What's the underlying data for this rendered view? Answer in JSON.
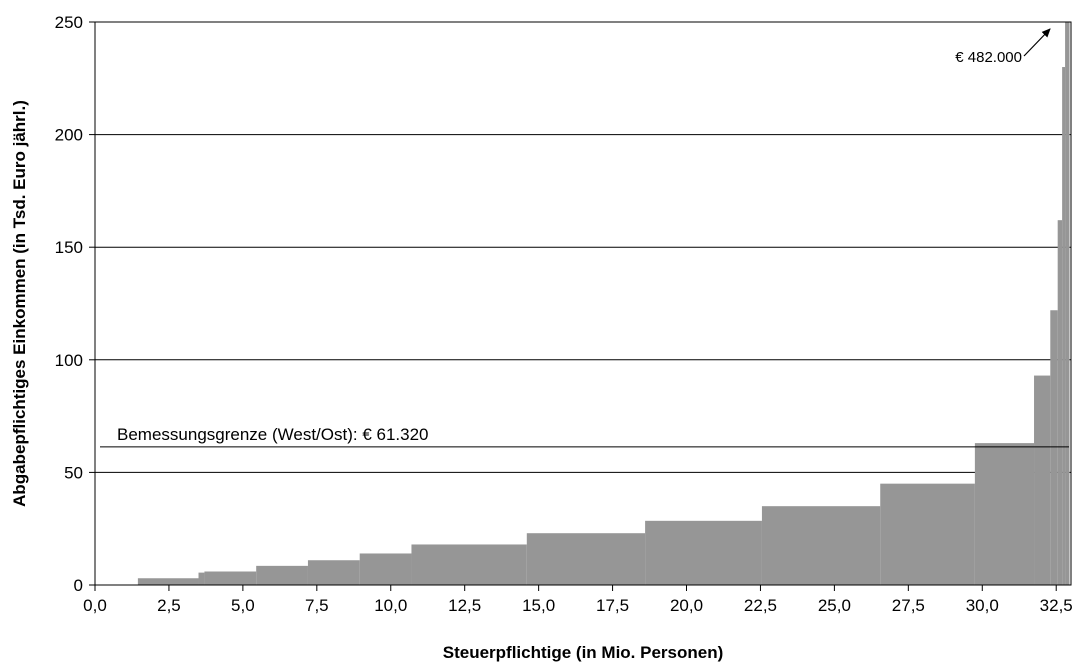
{
  "chart_data": {
    "type": "bar",
    "title": "",
    "xlabel": "Steuerpflichtige (in Mio. Personen)",
    "ylabel": "Abgabepflichtiges Einkommen (in Tsd. Euro jährl.)",
    "xlim": [
      0,
      33.0
    ],
    "ylim": [
      0,
      250
    ],
    "x_ticks": [
      "0,0",
      "2,5",
      "5,0",
      "7,5",
      "10,0",
      "12,5",
      "15,0",
      "17,5",
      "20,0",
      "22,5",
      "25,0",
      "27,5",
      "30,0",
      "32,5"
    ],
    "x_tick_values": [
      0,
      2.5,
      5,
      7.5,
      10,
      12.5,
      15,
      17.5,
      20,
      22.5,
      25,
      27.5,
      30,
      32.5
    ],
    "y_ticks": [
      "0",
      "50",
      "100",
      "150",
      "200",
      "250"
    ],
    "y_tick_values": [
      0,
      50,
      100,
      150,
      200,
      250
    ],
    "grid": true,
    "color": "#969696",
    "bins": [
      {
        "x0": 1.45,
        "x1": 3.5,
        "value": 3
      },
      {
        "x0": 3.5,
        "x1": 3.7,
        "value": 5.5
      },
      {
        "x0": 3.7,
        "x1": 5.45,
        "value": 6
      },
      {
        "x0": 5.45,
        "x1": 7.2,
        "value": 8.5
      },
      {
        "x0": 7.2,
        "x1": 8.95,
        "value": 11
      },
      {
        "x0": 8.95,
        "x1": 10.7,
        "value": 14
      },
      {
        "x0": 10.7,
        "x1": 14.6,
        "value": 18
      },
      {
        "x0": 14.6,
        "x1": 18.6,
        "value": 23
      },
      {
        "x0": 18.6,
        "x1": 22.55,
        "value": 28.5
      },
      {
        "x0": 22.55,
        "x1": 26.55,
        "value": 35
      },
      {
        "x0": 26.55,
        "x1": 29.75,
        "value": 45
      },
      {
        "x0": 29.75,
        "x1": 31.75,
        "value": 63
      },
      {
        "x0": 31.75,
        "x1": 32.3,
        "value": 93
      },
      {
        "x0": 32.3,
        "x1": 32.55,
        "value": 122
      },
      {
        "x0": 32.55,
        "x1": 32.7,
        "value": 162
      },
      {
        "x0": 32.7,
        "x1": 32.8,
        "value": 230
      },
      {
        "x0": 32.8,
        "x1": 32.95,
        "value": 250
      }
    ],
    "reference_line": {
      "value": 61.32,
      "label": "Bemessungsgrenze (West/Ost): € 61.320"
    },
    "annotation": {
      "label": "€ 482.000",
      "value": 482
    }
  }
}
